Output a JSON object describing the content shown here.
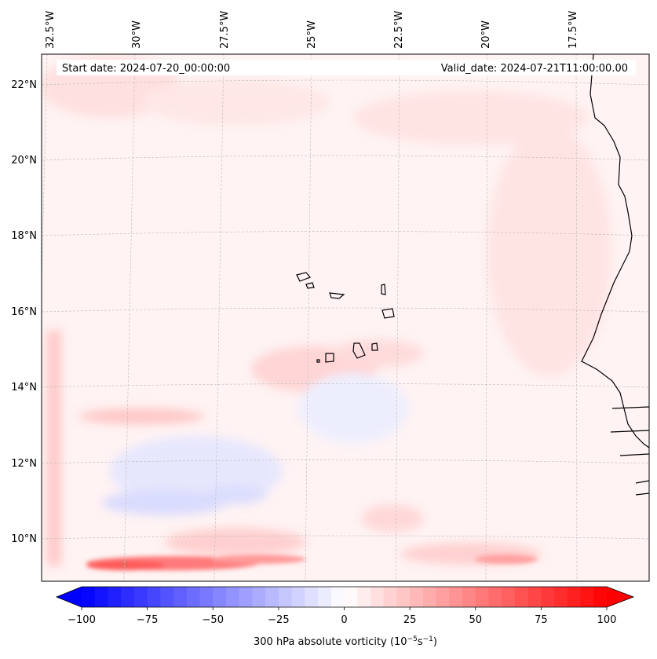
{
  "map": {
    "start_date": "Start date: 2024-07-20_00:00:00",
    "valid_date": "Valid_date: 2024-07-21T11:00:00.00",
    "lon_labels": [
      "32.5°W",
      "30°W",
      "27.5°W",
      "25°W",
      "22.5°W",
      "20°W",
      "17.5°W"
    ],
    "lat_labels": [
      "22°N",
      "20°N",
      "18°N",
      "16°N",
      "14°N",
      "12°N",
      "10°N"
    ]
  },
  "colorbar": {
    "ticks": [
      "−100",
      "−75",
      "−50",
      "−25",
      "0",
      "25",
      "50",
      "75",
      "100"
    ],
    "label": "300 hPa absolute vorticity (10",
    "label_exp1": "−5",
    "label_mid": "s",
    "label_exp2": "−1",
    "label_end": ")",
    "vmin": -100,
    "vmax": 100,
    "color_low": "#0000ff",
    "color_mid": "#ffffff",
    "color_high": "#ff0000"
  },
  "colors": {
    "coast": "#000000",
    "grid": "#bbbbbb"
  }
}
